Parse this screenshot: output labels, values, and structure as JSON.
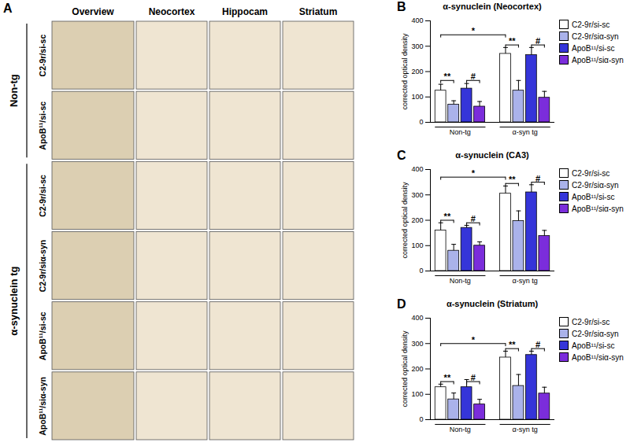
{
  "panel_a": {
    "label": "A",
    "columns": [
      "Overview",
      "Neocortex",
      "Hippocam",
      "Striatum"
    ],
    "groups": [
      {
        "label": "Non-tg",
        "rows": [
          "C2-9r/si-sc",
          "ApoB¹¹/si-sc"
        ]
      },
      {
        "label": "α-synuclein tg",
        "rows": [
          "C2-9r/si-sc",
          "C2-9r/siα-syn",
          "ApoB¹¹/si-sc",
          "ApoB¹¹/siα-syn"
        ]
      }
    ]
  },
  "chart_data": [
    {
      "type": "bar",
      "panel": "B",
      "title": "α-synuclein (Neocortex)",
      "ylabel": "corrected optical density",
      "categories": [
        "Non-tg",
        "α-syn tg"
      ],
      "series": [
        {
          "name": "C2-9r/si-sc",
          "color": "#ffffff",
          "values": [
            125,
            270
          ],
          "errors": [
            25,
            25
          ]
        },
        {
          "name": "C2-9r/siα-syn",
          "color": "#aab2ea",
          "values": [
            70,
            125
          ],
          "errors": [
            15,
            40
          ]
        },
        {
          "name": "ApoB¹¹/si-sc",
          "color": "#3535d9",
          "values": [
            133,
            265
          ],
          "errors": [
            20,
            30
          ]
        },
        {
          "name": "ApoB¹¹/siα-syn",
          "color": "#7b2ddb",
          "values": [
            62,
            97
          ],
          "errors": [
            20,
            25
          ]
        }
      ],
      "ylim": [
        0,
        400
      ],
      "yticks": [
        0,
        100,
        200,
        300,
        400
      ],
      "legend": "right",
      "annotations": [
        {
          "label": "*",
          "from": [
            0,
            0
          ],
          "to": [
            1,
            0
          ],
          "y": 345
        },
        {
          "label": "**",
          "from": [
            0,
            0
          ],
          "to": [
            0,
            1
          ],
          "y": 165
        },
        {
          "label": "#",
          "from": [
            0,
            2
          ],
          "to": [
            0,
            3
          ],
          "y": 165
        },
        {
          "label": "**",
          "from": [
            1,
            0
          ],
          "to": [
            1,
            1
          ],
          "y": 305
        },
        {
          "label": "#",
          "from": [
            1,
            2
          ],
          "to": [
            1,
            3
          ],
          "y": 305
        }
      ]
    },
    {
      "type": "bar",
      "panel": "C",
      "title": "α-synuclein (CA3)",
      "ylabel": "corrected optical density",
      "categories": [
        "Non-tg",
        "α-syn tg"
      ],
      "series": [
        {
          "name": "C2-9r/si-sc",
          "color": "#ffffff",
          "values": [
            160,
            305
          ],
          "errors": [
            30,
            30
          ]
        },
        {
          "name": "C2-9r/siα-syn",
          "color": "#aab2ea",
          "values": [
            80,
            197
          ],
          "errors": [
            25,
            40
          ]
        },
        {
          "name": "ApoB¹¹/si-sc",
          "color": "#3535d9",
          "values": [
            170,
            310
          ],
          "errors": [
            10,
            30
          ]
        },
        {
          "name": "ApoB¹¹/siα-syn",
          "color": "#7b2ddb",
          "values": [
            100,
            138
          ],
          "errors": [
            15,
            22
          ]
        }
      ],
      "ylim": [
        0,
        400
      ],
      "yticks": [
        0,
        100,
        200,
        300,
        400
      ],
      "legend": "right",
      "annotations": [
        {
          "label": "*",
          "from": [
            0,
            0
          ],
          "to": [
            1,
            0
          ],
          "y": 370
        },
        {
          "label": "**",
          "from": [
            0,
            0
          ],
          "to": [
            0,
            1
          ],
          "y": 200
        },
        {
          "label": "#",
          "from": [
            0,
            2
          ],
          "to": [
            0,
            3
          ],
          "y": 190
        },
        {
          "label": "**",
          "from": [
            1,
            0
          ],
          "to": [
            1,
            1
          ],
          "y": 345
        },
        {
          "label": "#",
          "from": [
            1,
            2
          ],
          "to": [
            1,
            3
          ],
          "y": 350
        }
      ]
    },
    {
      "type": "bar",
      "panel": "D",
      "title": "α-synuclein (Striatum)",
      "ylabel": "corrected optical density",
      "categories": [
        "Non-tg",
        "α-syn tg"
      ],
      "series": [
        {
          "name": "C2-9r/si-sc",
          "color": "#ffffff",
          "values": [
            128,
            245
          ],
          "errors": [
            12,
            25
          ]
        },
        {
          "name": "C2-9r/siα-syn",
          "color": "#aab2ea",
          "values": [
            80,
            133
          ],
          "errors": [
            25,
            45
          ]
        },
        {
          "name": "ApoB¹¹/si-sc",
          "color": "#3535d9",
          "values": [
            128,
            255
          ],
          "errors": [
            30,
            15
          ]
        },
        {
          "name": "ApoB¹¹/siα-syn",
          "color": "#7b2ddb",
          "values": [
            60,
            103
          ],
          "errors": [
            20,
            25
          ]
        }
      ],
      "ylim": [
        0,
        400
      ],
      "yticks": [
        0,
        100,
        200,
        300,
        400
      ],
      "legend": "right",
      "annotations": [
        {
          "label": "*",
          "from": [
            0,
            0
          ],
          "to": [
            1,
            0
          ],
          "y": 300
        },
        {
          "label": "**",
          "from": [
            0,
            0
          ],
          "to": [
            0,
            1
          ],
          "y": 150
        },
        {
          "label": "#",
          "from": [
            0,
            2
          ],
          "to": [
            0,
            3
          ],
          "y": 150
        },
        {
          "label": "**",
          "from": [
            1,
            0
          ],
          "to": [
            1,
            1
          ],
          "y": 280
        },
        {
          "label": "#",
          "from": [
            1,
            2
          ],
          "to": [
            1,
            3
          ],
          "y": 280
        }
      ]
    }
  ]
}
